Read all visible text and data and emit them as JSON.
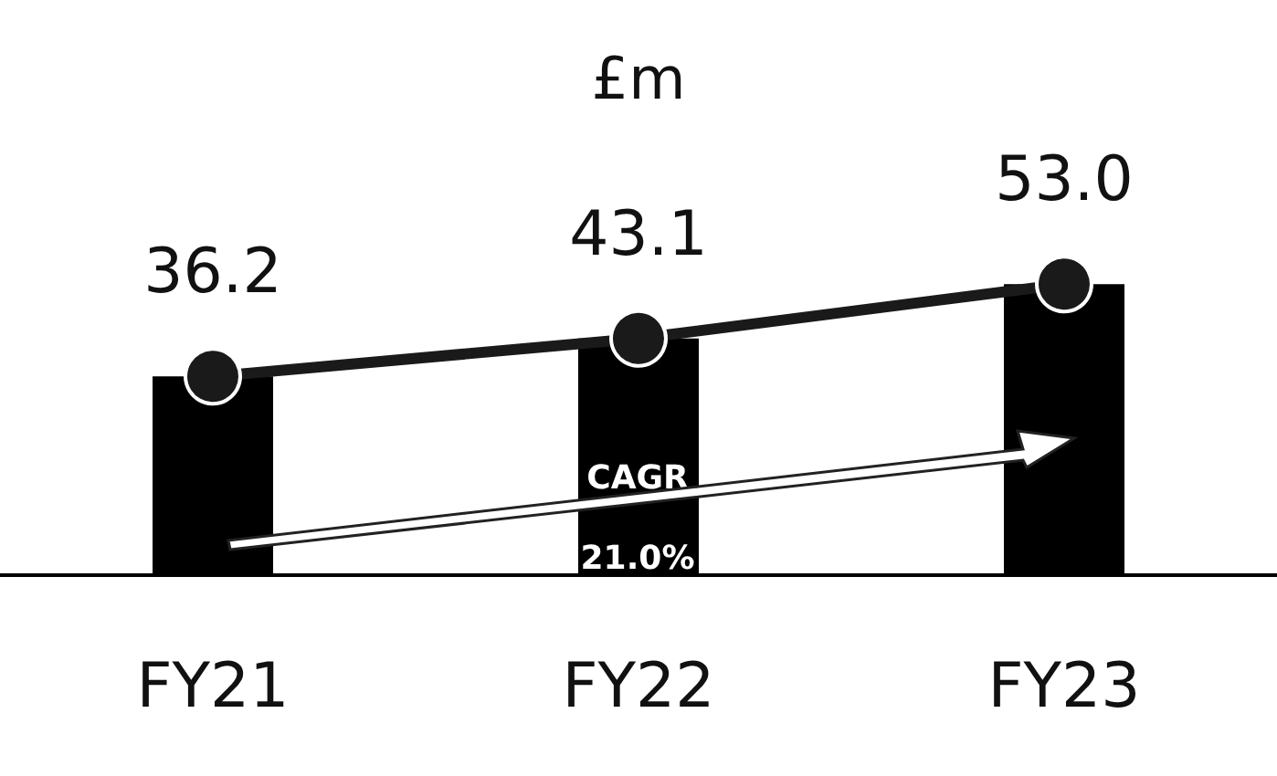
{
  "chart_data": {
    "type": "bar",
    "title": "£m",
    "categories": [
      "FY21",
      "FY22",
      "FY23"
    ],
    "series": [
      {
        "color": "#000000",
        "values": [
          36.2,
          43.1,
          53.0
        ],
        "value_labels": [
          "36.2",
          "43.1",
          "53.0"
        ]
      },
      {
        "type": "line",
        "color": "#1a1a1a",
        "values": [
          36.2,
          43.1,
          53.0
        ],
        "marker": "circle"
      }
    ],
    "annotations": [
      "CAGR\n21.0%"
    ],
    "grid": false
  }
}
